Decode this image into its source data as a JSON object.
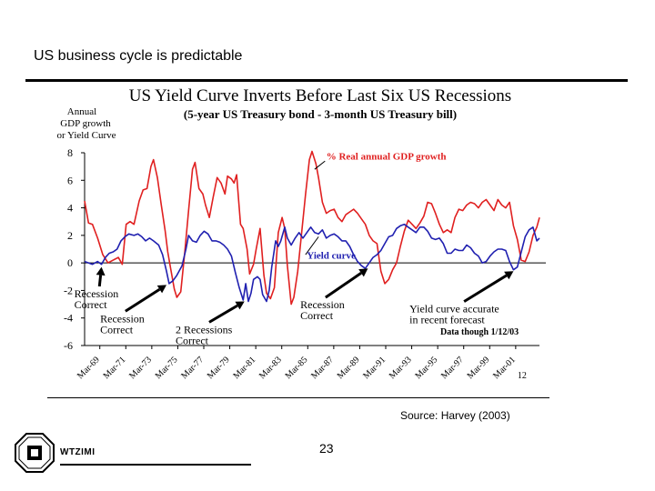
{
  "slide": {
    "title": "US business cycle is predictable",
    "source": "Source: Harvey (2003)",
    "page_number": "23",
    "logo_text": "WTZIMI"
  },
  "chart_data": {
    "type": "line",
    "title": "US Yield Curve Inverts Before Last Six US Recessions",
    "subtitle": "(5-year US Treasury bond - 3-month US Treasury bill)",
    "ylabel_lines": [
      "Annual",
      "GDP growth",
      "or Yield Curve"
    ],
    "ylim": [
      -6,
      8
    ],
    "yticks": [
      8,
      6,
      4,
      2,
      0,
      -2,
      -4,
      -6
    ],
    "xlim": [
      1968,
      2003
    ],
    "x_ticks": [
      {
        "label": "Mar-69",
        "x": 1969.17
      },
      {
        "label": "Mar-71",
        "x": 1971.17
      },
      {
        "label": "Mar-73",
        "x": 1973.17
      },
      {
        "label": "Mar-75",
        "x": 1975.17
      },
      {
        "label": "Mar-77",
        "x": 1977.17
      },
      {
        "label": "Mar-79",
        "x": 1979.17
      },
      {
        "label": "Mar-81",
        "x": 1981.17
      },
      {
        "label": "Mar-83",
        "x": 1983.17
      },
      {
        "label": "Mar-85",
        "x": 1985.17
      },
      {
        "label": "Mar-87",
        "x": 1987.17
      },
      {
        "label": "Mar-89",
        "x": 1989.17
      },
      {
        "label": "Mar-91",
        "x": 1991.17
      },
      {
        "label": "Mar-93",
        "x": 1993.17
      },
      {
        "label": "Mar-95",
        "x": 1995.17
      },
      {
        "label": "Mar-97",
        "x": 1997.17
      },
      {
        "label": "Mar-99",
        "x": 1999.17
      },
      {
        "label": "Mar-01",
        "x": 2001.17
      }
    ],
    "x_tick_overlap_label": "12",
    "series": [
      {
        "name": "% Real annual GDP growth",
        "color": "#e02020",
        "points": [
          [
            1968.0,
            4.5
          ],
          [
            1968.3,
            2.9
          ],
          [
            1968.6,
            2.8
          ],
          [
            1969.0,
            1.8
          ],
          [
            1969.4,
            0.6
          ],
          [
            1969.8,
            0.0
          ],
          [
            1970.2,
            0.2
          ],
          [
            1970.6,
            0.4
          ],
          [
            1970.9,
            -0.1
          ],
          [
            1971.2,
            2.8
          ],
          [
            1971.5,
            3.0
          ],
          [
            1971.8,
            2.8
          ],
          [
            1972.2,
            4.5
          ],
          [
            1972.5,
            5.3
          ],
          [
            1972.8,
            5.4
          ],
          [
            1973.1,
            7.0
          ],
          [
            1973.3,
            7.5
          ],
          [
            1973.6,
            6.2
          ],
          [
            1973.9,
            4.2
          ],
          [
            1974.2,
            2.3
          ],
          [
            1974.4,
            0.8
          ],
          [
            1974.6,
            -0.3
          ],
          [
            1974.9,
            -1.9
          ],
          [
            1975.1,
            -2.5
          ],
          [
            1975.4,
            -2.1
          ],
          [
            1975.7,
            0.7
          ],
          [
            1976.0,
            3.8
          ],
          [
            1976.3,
            6.8
          ],
          [
            1976.5,
            7.3
          ],
          [
            1976.8,
            5.4
          ],
          [
            1977.1,
            5.0
          ],
          [
            1977.3,
            4.2
          ],
          [
            1977.6,
            3.3
          ],
          [
            1977.9,
            4.8
          ],
          [
            1978.2,
            6.2
          ],
          [
            1978.5,
            5.8
          ],
          [
            1978.8,
            5.0
          ],
          [
            1979.0,
            6.3
          ],
          [
            1979.3,
            6.1
          ],
          [
            1979.5,
            5.8
          ],
          [
            1979.7,
            6.4
          ],
          [
            1980.0,
            2.8
          ],
          [
            1980.2,
            2.5
          ],
          [
            1980.5,
            1.0
          ],
          [
            1980.7,
            -0.8
          ],
          [
            1981.0,
            -0.1
          ],
          [
            1981.2,
            1.0
          ],
          [
            1981.5,
            2.5
          ],
          [
            1981.8,
            -0.9
          ],
          [
            1982.0,
            -2.2
          ],
          [
            1982.3,
            -2.6
          ],
          [
            1982.6,
            -1.8
          ],
          [
            1982.9,
            2.2
          ],
          [
            1983.2,
            3.3
          ],
          [
            1983.4,
            2.5
          ],
          [
            1983.6,
            -0.2
          ],
          [
            1983.9,
            -3.0
          ],
          [
            1984.1,
            -2.5
          ],
          [
            1984.4,
            -0.6
          ],
          [
            1984.7,
            2.2
          ],
          [
            1985.0,
            5.0
          ],
          [
            1985.3,
            7.5
          ],
          [
            1985.5,
            8.1
          ],
          [
            1985.8,
            7.2
          ],
          [
            1986.0,
            6.2
          ],
          [
            1986.3,
            4.4
          ],
          [
            1986.6,
            3.6
          ],
          [
            1986.9,
            3.8
          ],
          [
            1987.2,
            3.9
          ],
          [
            1987.5,
            3.3
          ],
          [
            1987.8,
            3.0
          ],
          [
            1988.1,
            3.5
          ],
          [
            1988.4,
            3.7
          ],
          [
            1988.7,
            3.9
          ],
          [
            1989.0,
            3.6
          ],
          [
            1989.3,
            3.2
          ],
          [
            1989.6,
            2.8
          ],
          [
            1989.9,
            2.0
          ],
          [
            1990.2,
            1.6
          ],
          [
            1990.5,
            1.4
          ],
          [
            1990.8,
            -0.6
          ],
          [
            1991.1,
            -1.5
          ],
          [
            1991.4,
            -1.2
          ],
          [
            1991.7,
            -0.5
          ],
          [
            1992.0,
            0.0
          ],
          [
            1992.3,
            1.2
          ],
          [
            1992.6,
            2.3
          ],
          [
            1992.9,
            3.1
          ],
          [
            1993.2,
            2.8
          ],
          [
            1993.5,
            2.5
          ],
          [
            1993.8,
            2.9
          ],
          [
            1994.1,
            3.4
          ],
          [
            1994.4,
            4.4
          ],
          [
            1994.7,
            4.3
          ],
          [
            1995.0,
            3.6
          ],
          [
            1995.3,
            2.8
          ],
          [
            1995.6,
            2.2
          ],
          [
            1995.9,
            2.4
          ],
          [
            1996.2,
            2.2
          ],
          [
            1996.5,
            3.3
          ],
          [
            1996.8,
            3.9
          ],
          [
            1997.1,
            3.8
          ],
          [
            1997.4,
            4.2
          ],
          [
            1997.7,
            4.4
          ],
          [
            1998.0,
            4.3
          ],
          [
            1998.3,
            4.0
          ],
          [
            1998.6,
            4.4
          ],
          [
            1998.9,
            4.6
          ],
          [
            1999.2,
            4.2
          ],
          [
            1999.5,
            3.8
          ],
          [
            1999.8,
            4.6
          ],
          [
            2000.1,
            4.2
          ],
          [
            2000.4,
            4.0
          ],
          [
            2000.7,
            4.4
          ],
          [
            2001.0,
            2.7
          ],
          [
            2001.3,
            1.7
          ],
          [
            2001.6,
            0.2
          ],
          [
            2001.9,
            0.1
          ],
          [
            2002.2,
            0.8
          ],
          [
            2002.5,
            2.0
          ],
          [
            2002.8,
            2.6
          ],
          [
            2003.0,
            3.3
          ]
        ]
      },
      {
        "name": "Yield curve",
        "color": "#2020b0",
        "points": [
          [
            1968.0,
            0.1
          ],
          [
            1968.3,
            0.0
          ],
          [
            1968.6,
            -0.1
          ],
          [
            1969.0,
            0.1
          ],
          [
            1969.3,
            -0.1
          ],
          [
            1969.6,
            0.4
          ],
          [
            1969.9,
            0.7
          ],
          [
            1970.2,
            0.8
          ],
          [
            1970.5,
            1.0
          ],
          [
            1970.8,
            1.6
          ],
          [
            1971.1,
            1.9
          ],
          [
            1971.4,
            2.1
          ],
          [
            1971.8,
            2.0
          ],
          [
            1972.1,
            2.1
          ],
          [
            1972.4,
            1.9
          ],
          [
            1972.7,
            1.6
          ],
          [
            1973.0,
            1.8
          ],
          [
            1973.3,
            1.6
          ],
          [
            1973.7,
            1.3
          ],
          [
            1974.0,
            0.6
          ],
          [
            1974.3,
            -0.6
          ],
          [
            1974.5,
            -1.5
          ],
          [
            1974.8,
            -1.3
          ],
          [
            1975.1,
            -0.9
          ],
          [
            1975.5,
            -0.2
          ],
          [
            1975.8,
            1.0
          ],
          [
            1976.0,
            2.0
          ],
          [
            1976.3,
            1.6
          ],
          [
            1976.6,
            1.5
          ],
          [
            1976.9,
            2.0
          ],
          [
            1977.2,
            2.3
          ],
          [
            1977.5,
            2.1
          ],
          [
            1977.8,
            1.6
          ],
          [
            1978.1,
            1.6
          ],
          [
            1978.4,
            1.5
          ],
          [
            1978.7,
            1.3
          ],
          [
            1979.0,
            1.0
          ],
          [
            1979.3,
            0.5
          ],
          [
            1979.6,
            -0.7
          ],
          [
            1979.9,
            -1.8
          ],
          [
            1980.2,
            -2.7
          ],
          [
            1980.4,
            -1.5
          ],
          [
            1980.6,
            -2.8
          ],
          [
            1980.8,
            -2.2
          ],
          [
            1981.0,
            -1.2
          ],
          [
            1981.3,
            -1.0
          ],
          [
            1981.5,
            -1.2
          ],
          [
            1981.7,
            -2.3
          ],
          [
            1982.0,
            -2.8
          ],
          [
            1982.2,
            -2.0
          ],
          [
            1982.4,
            -0.3
          ],
          [
            1982.7,
            1.6
          ],
          [
            1982.9,
            1.2
          ],
          [
            1983.1,
            1.6
          ],
          [
            1983.4,
            2.6
          ],
          [
            1983.6,
            1.8
          ],
          [
            1983.9,
            1.3
          ],
          [
            1984.2,
            1.8
          ],
          [
            1984.5,
            2.2
          ],
          [
            1984.8,
            1.8
          ],
          [
            1985.1,
            2.2
          ],
          [
            1985.4,
            2.6
          ],
          [
            1985.7,
            2.2
          ],
          [
            1986.0,
            2.1
          ],
          [
            1986.3,
            2.4
          ],
          [
            1986.6,
            1.8
          ],
          [
            1986.9,
            2.0
          ],
          [
            1987.2,
            2.1
          ],
          [
            1987.5,
            1.9
          ],
          [
            1987.8,
            1.6
          ],
          [
            1988.1,
            1.6
          ],
          [
            1988.4,
            1.2
          ],
          [
            1988.7,
            0.6
          ],
          [
            1989.0,
            0.1
          ],
          [
            1989.3,
            -0.2
          ],
          [
            1989.6,
            -0.4
          ],
          [
            1989.9,
            0.0
          ],
          [
            1990.2,
            0.4
          ],
          [
            1990.5,
            0.6
          ],
          [
            1990.8,
            0.9
          ],
          [
            1991.1,
            1.4
          ],
          [
            1991.4,
            1.9
          ],
          [
            1991.7,
            2.0
          ],
          [
            1992.0,
            2.5
          ],
          [
            1992.3,
            2.7
          ],
          [
            1992.6,
            2.8
          ],
          [
            1992.9,
            2.6
          ],
          [
            1993.2,
            2.4
          ],
          [
            1993.5,
            2.2
          ],
          [
            1993.8,
            2.6
          ],
          [
            1994.1,
            2.6
          ],
          [
            1994.4,
            2.3
          ],
          [
            1994.7,
            1.8
          ],
          [
            1995.0,
            1.7
          ],
          [
            1995.3,
            1.8
          ],
          [
            1995.6,
            1.4
          ],
          [
            1995.9,
            0.7
          ],
          [
            1996.2,
            0.7
          ],
          [
            1996.5,
            1.0
          ],
          [
            1996.8,
            0.9
          ],
          [
            1997.1,
            0.9
          ],
          [
            1997.4,
            1.3
          ],
          [
            1997.7,
            1.1
          ],
          [
            1998.0,
            0.7
          ],
          [
            1998.3,
            0.5
          ],
          [
            1998.6,
            0.0
          ],
          [
            1998.9,
            0.1
          ],
          [
            1999.2,
            0.5
          ],
          [
            1999.5,
            0.8
          ],
          [
            1999.8,
            1.0
          ],
          [
            2000.1,
            1.0
          ],
          [
            2000.4,
            0.9
          ],
          [
            2000.7,
            0.1
          ],
          [
            2001.0,
            -0.5
          ],
          [
            2001.3,
            -0.3
          ],
          [
            2001.6,
            0.8
          ],
          [
            2001.9,
            1.9
          ],
          [
            2002.2,
            2.4
          ],
          [
            2002.5,
            2.6
          ],
          [
            2002.8,
            1.6
          ],
          [
            2003.0,
            1.8
          ]
        ]
      }
    ],
    "annotations": [
      {
        "lines": [
          "Recession",
          "Correct"
        ],
        "x": 1967.2,
        "y": -2.5,
        "arrow_to": [
          1969.3,
          -0.3
        ]
      },
      {
        "lines": [
          "Recession",
          "Correct"
        ],
        "x": 1969.2,
        "y": -4.3,
        "arrow_to": [
          1974.3,
          -1.6
        ]
      },
      {
        "lines": [
          "2 Recessions",
          "Correct"
        ],
        "x": 1975.0,
        "y": -5.1,
        "arrow_to": [
          1980.3,
          -2.8
        ]
      },
      {
        "lines": [
          "Recession",
          "Correct"
        ],
        "x": 1984.6,
        "y": -3.3,
        "arrow_to": [
          1989.8,
          -0.4
        ]
      },
      {
        "lines": [
          "Yield curve accurate",
          "in recent forecast"
        ],
        "x": 1993.0,
        "y": -3.6,
        "arrow_to": [
          2001.0,
          -0.6
        ]
      }
    ],
    "data_note": "Data though 1/12/03",
    "legend": "labels placed inline next to each line"
  }
}
